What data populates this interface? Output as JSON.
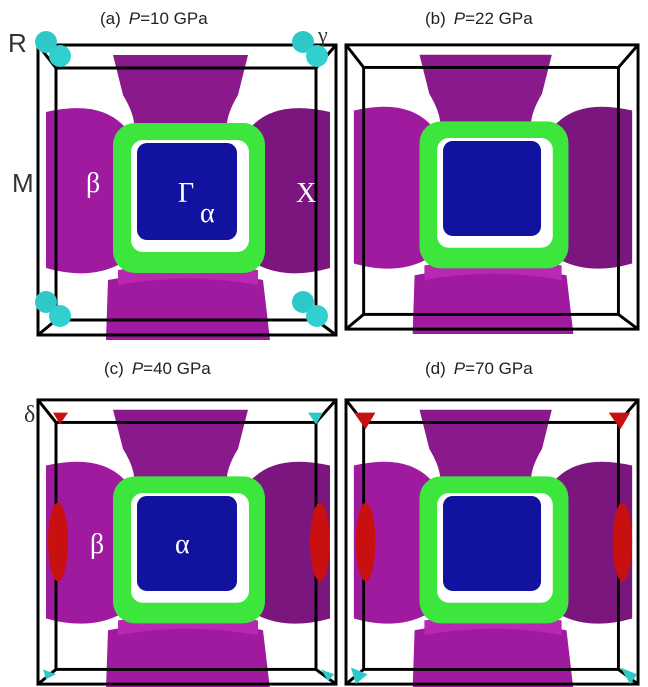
{
  "panels": [
    {
      "label": "(a)",
      "variable": "P",
      "value": "=10 GPa",
      "annotations": [
        "R",
        "γ",
        "M",
        "β",
        "Γ",
        "α",
        "X"
      ]
    },
    {
      "label": "(b)",
      "variable": "P",
      "value": "=22 GPa"
    },
    {
      "label": "(c)",
      "variable": "P",
      "value": "=40 GPa",
      "annotations": [
        "δ",
        "β",
        "α"
      ]
    },
    {
      "label": "(d)",
      "variable": "P",
      "value": "=70 GPa"
    }
  ]
}
